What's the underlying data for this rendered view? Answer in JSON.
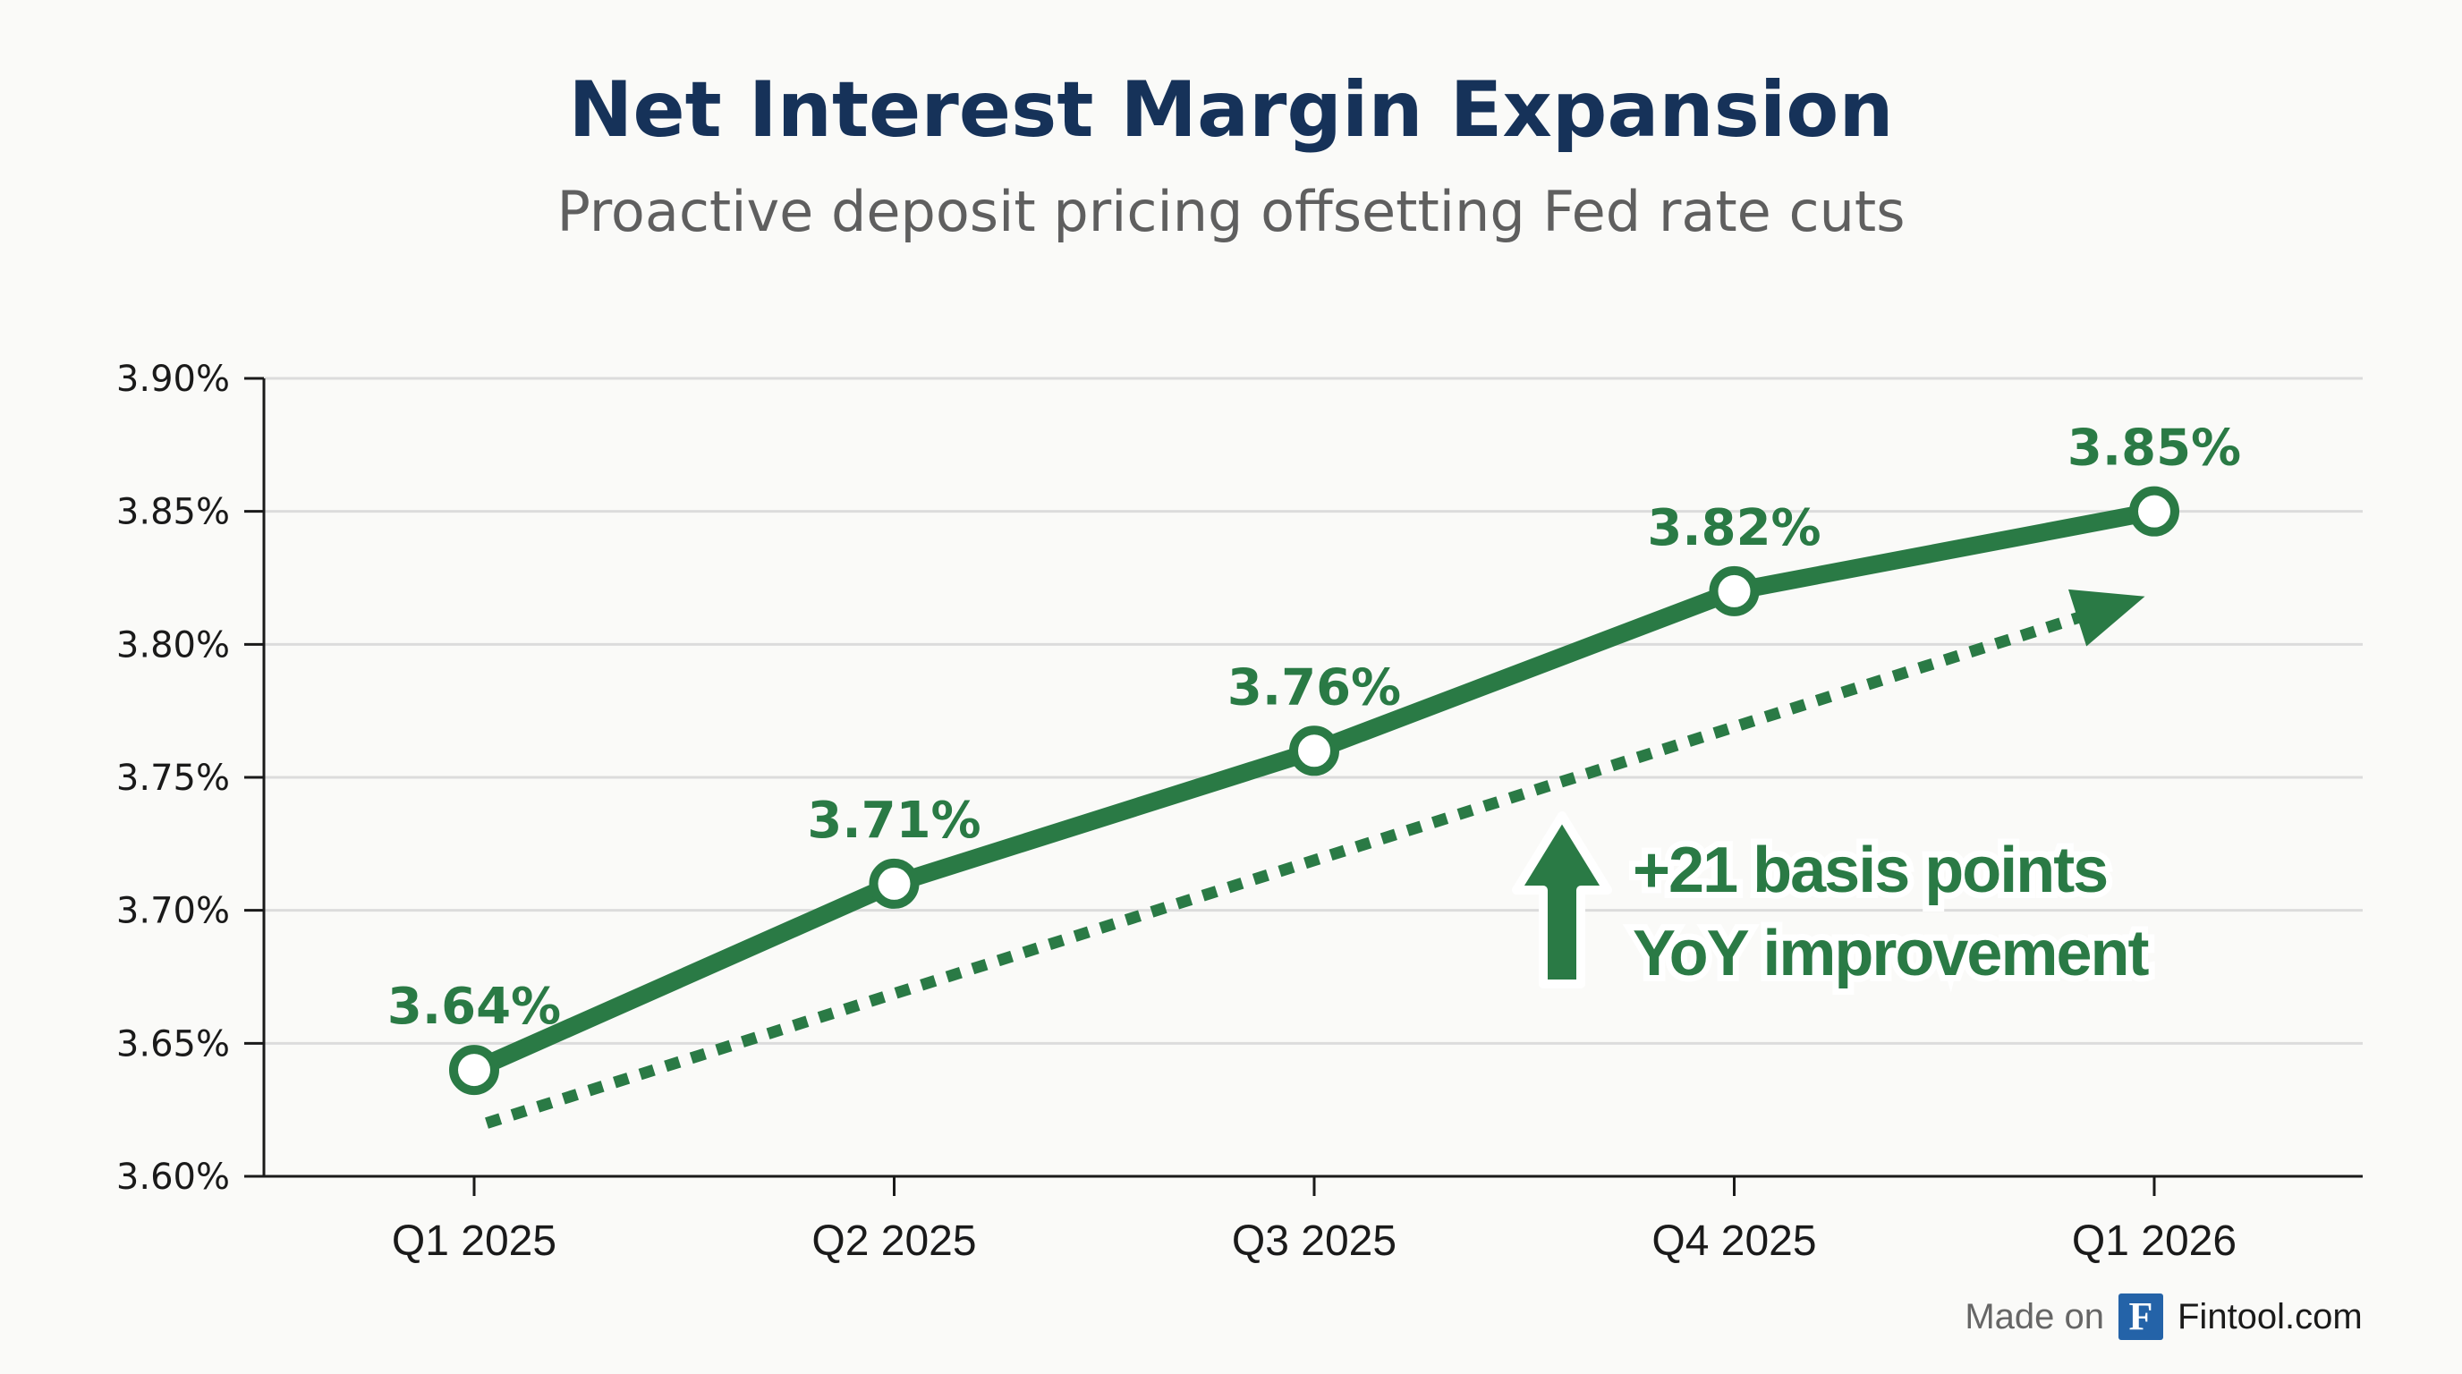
{
  "chart_data": {
    "type": "line",
    "title": "Net Interest Margin Expansion",
    "subtitle": "Proactive deposit pricing offsetting Fed rate cuts",
    "xlabel": "",
    "ylabel": "",
    "categories": [
      "Q1 2025",
      "Q2 2025",
      "Q3 2025",
      "Q4 2025",
      "Q1 2026"
    ],
    "series": [
      {
        "name": "Net Interest Margin",
        "values": [
          3.64,
          3.71,
          3.76,
          3.82,
          3.85
        ],
        "labels": [
          "3.64%",
          "3.71%",
          "3.76%",
          "3.82%",
          "3.85%"
        ]
      }
    ],
    "trend": {
      "style": "dotted",
      "start": 3.62,
      "end": 3.815,
      "arrow": true
    },
    "ylim": [
      3.6,
      3.9
    ],
    "yticks": [
      3.6,
      3.65,
      3.7,
      3.75,
      3.8,
      3.85,
      3.9
    ],
    "ytick_labels": [
      "3.60%",
      "3.65%",
      "3.70%",
      "3.75%",
      "3.80%",
      "3.85%",
      "3.90%"
    ],
    "grid": true,
    "annotation": {
      "line1": "+21 basis points",
      "line2": "YoY improvement"
    },
    "colors": {
      "line": "#2a7a45",
      "title": "#163259",
      "grid": "#dcdcdc",
      "brand": "#2463a8"
    }
  },
  "footer": {
    "made_on": "Made on",
    "logo_letter": "F",
    "brand": "Fintool.com"
  }
}
